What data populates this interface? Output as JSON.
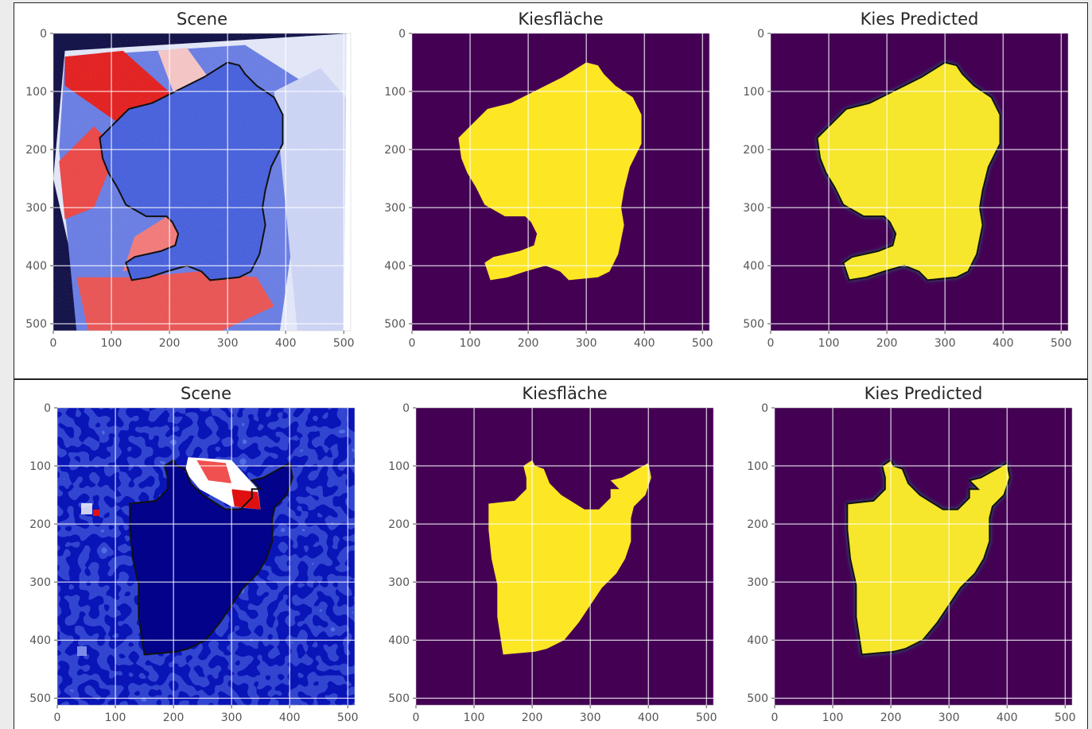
{
  "figure": {
    "rows": [
      {
        "panels": [
          {
            "title": "Scene",
            "kind": "scene-1"
          },
          {
            "title": "Kiesfläche",
            "kind": "mask-1"
          },
          {
            "title": "Kies Predicted",
            "kind": "pred-1"
          }
        ]
      },
      {
        "panels": [
          {
            "title": "Scene",
            "kind": "scene-2"
          },
          {
            "title": "Kiesfläche",
            "kind": "mask-2"
          },
          {
            "title": "Kies Predicted",
            "kind": "pred-2"
          }
        ]
      }
    ],
    "x_ticks": [
      "0",
      "100",
      "200",
      "300",
      "400",
      "500"
    ],
    "y_ticks": [
      "0",
      "100",
      "200",
      "300",
      "400",
      "500"
    ]
  },
  "colors": {
    "viridis_dark": "#440154",
    "viridis_yellow": "#fde725",
    "viridis_edge": "#21918c",
    "scene_blue": "#3a55d8",
    "scene_navy": "#00003a",
    "scene_red": "#e01010",
    "grid": "#ffffff",
    "outline": "#111111"
  }
}
